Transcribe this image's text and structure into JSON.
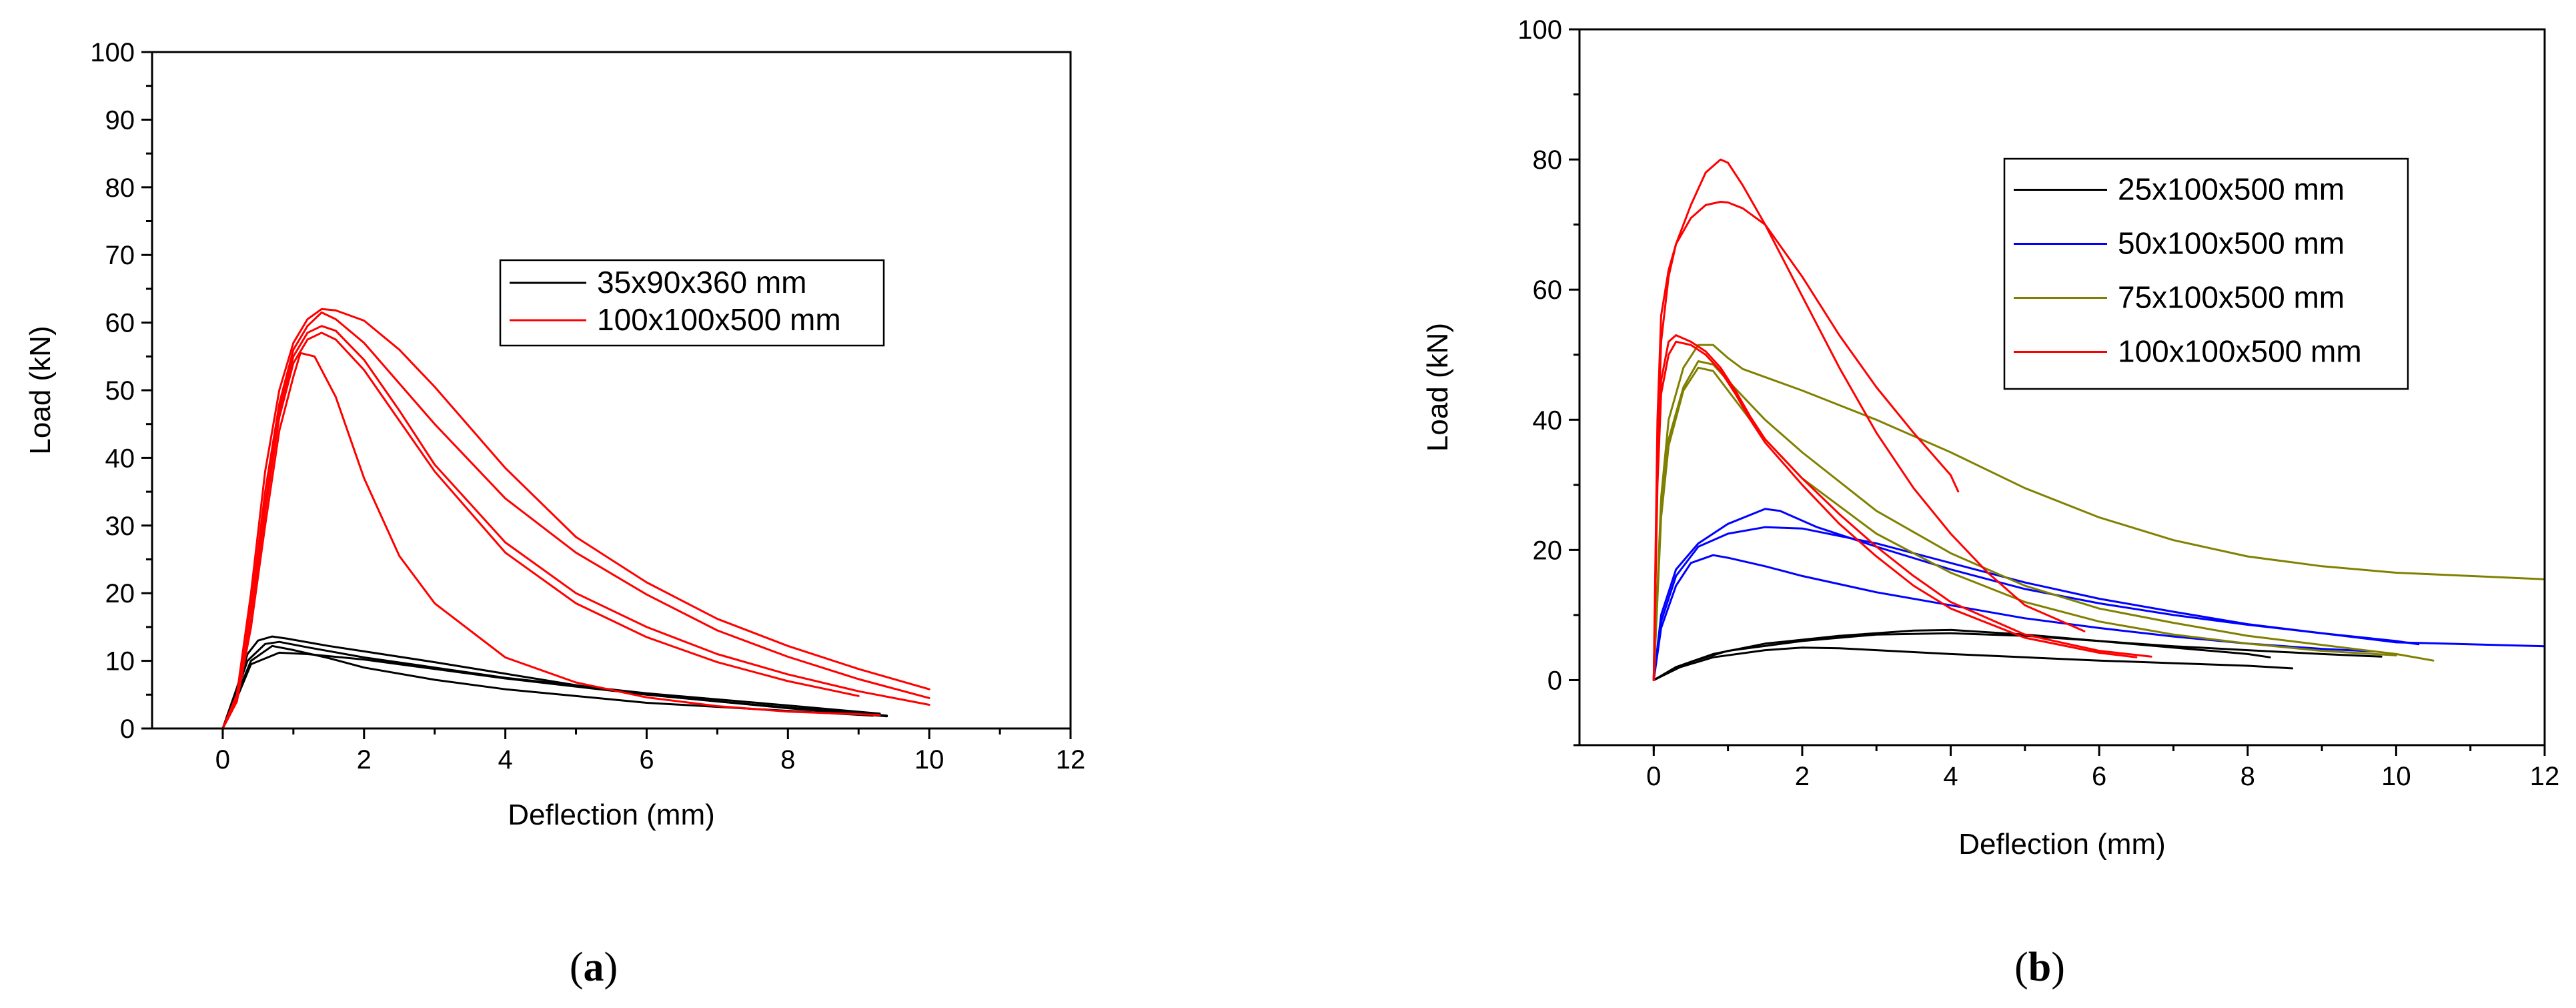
{
  "chart_data": [
    {
      "type": "line",
      "caption": "a",
      "xlabel": "Deflection (mm)",
      "ylabel": "Load (kN)",
      "xlim": [
        -1,
        12
      ],
      "ylim": [
        0,
        100
      ],
      "xticks": [
        0,
        2,
        4,
        6,
        8,
        10,
        12
      ],
      "yticks": [
        0,
        10,
        20,
        30,
        40,
        50,
        60,
        70,
        80,
        90,
        100
      ],
      "legend_position": "upper-right",
      "series": [
        {
          "name": "35x90x360 mm",
          "color": "#000000",
          "show_in_legend": true,
          "x": [
            0,
            0.2,
            0.35,
            0.5,
            0.7,
            0.9,
            1.5,
            2,
            3,
            4,
            5,
            6,
            7,
            8,
            9,
            9.4
          ],
          "y": [
            0,
            6,
            11,
            13,
            13.6,
            13.3,
            12.2,
            11.4,
            9.8,
            8.1,
            6.4,
            5,
            4,
            3.1,
            2.3,
            1.9
          ]
        },
        {
          "name": "",
          "color": "#000000",
          "show_in_legend": false,
          "x": [
            0,
            0.2,
            0.35,
            0.6,
            0.8,
            1.2,
            2,
            3,
            4,
            6,
            8,
            9.3
          ],
          "y": [
            0,
            5.5,
            10,
            12.5,
            12.8,
            12,
            10.5,
            9,
            7.5,
            5.2,
            3.4,
            2.2
          ]
        },
        {
          "name": "",
          "color": "#000000",
          "show_in_legend": false,
          "x": [
            0,
            0.2,
            0.4,
            0.7,
            1,
            1.5,
            2,
            3,
            4,
            6,
            8,
            9.2
          ],
          "y": [
            0,
            5,
            10,
            12.2,
            11.6,
            10.4,
            9,
            7.2,
            5.8,
            3.8,
            2.6,
            1.9
          ]
        },
        {
          "name": "",
          "color": "#000000",
          "show_in_legend": false,
          "x": [
            0,
            0.2,
            0.4,
            0.8,
            1.2,
            2,
            3,
            4,
            6,
            8,
            9.4
          ],
          "y": [
            0,
            4.5,
            9.5,
            11.2,
            11,
            10.2,
            8.8,
            7.4,
            5,
            3,
            1.8
          ]
        },
        {
          "name": "100x100x500 mm",
          "color": "#ff0000",
          "show_in_legend": true,
          "x": [
            0,
            0.2,
            0.4,
            0.6,
            0.8,
            1,
            1.2,
            1.4,
            1.6,
            2,
            2.5,
            3,
            4,
            5,
            6,
            7,
            8,
            9,
            10
          ],
          "y": [
            0,
            5,
            20,
            38,
            50,
            57,
            60.5,
            62,
            61.8,
            60.3,
            56,
            50.5,
            38.5,
            28.3,
            21.6,
            16.2,
            12.2,
            8.8,
            5.8
          ]
        },
        {
          "name": "",
          "color": "#ff0000",
          "show_in_legend": false,
          "x": [
            0,
            0.2,
            0.4,
            0.6,
            0.8,
            1,
            1.2,
            1.4,
            1.6,
            2,
            2.5,
            3,
            4,
            5,
            6,
            7,
            8,
            9,
            10
          ],
          "y": [
            0,
            4.5,
            18,
            35,
            48,
            56,
            59.5,
            61.5,
            60.5,
            57,
            51,
            45,
            34,
            26,
            19.8,
            14.5,
            10.6,
            7.3,
            4.5
          ]
        },
        {
          "name": "",
          "color": "#ff0000",
          "show_in_legend": false,
          "x": [
            0,
            0.2,
            0.4,
            0.6,
            0.8,
            1,
            1.2,
            1.4,
            1.6,
            2,
            2.5,
            3,
            4,
            5,
            6,
            7,
            8,
            9,
            10
          ],
          "y": [
            0,
            4,
            16,
            33,
            47,
            55,
            58.5,
            59.5,
            58.8,
            54.5,
            47,
            39,
            27.5,
            20,
            15,
            11,
            8,
            5.5,
            3.5
          ]
        },
        {
          "name": "",
          "color": "#ff0000",
          "show_in_legend": false,
          "x": [
            0,
            0.2,
            0.4,
            0.6,
            0.8,
            1,
            1.2,
            1.4,
            1.6,
            2,
            2.5,
            3,
            4,
            5,
            6,
            7,
            8,
            9
          ],
          "y": [
            0,
            4,
            15,
            32,
            46,
            54,
            57.5,
            58.5,
            57.5,
            53,
            45.5,
            38,
            26,
            18.5,
            13.5,
            9.8,
            7,
            4.8
          ]
        },
        {
          "name": "",
          "color": "#ff0000",
          "show_in_legend": false,
          "x": [
            0,
            0.2,
            0.4,
            0.6,
            0.8,
            1,
            1.1,
            1.3,
            1.6,
            2,
            2.5,
            3,
            4,
            5,
            6,
            7,
            8,
            9.3
          ],
          "y": [
            0,
            4,
            15,
            30,
            44,
            52,
            55.5,
            55,
            49,
            37,
            25.5,
            18.5,
            10.5,
            6.8,
            4.6,
            3.3,
            2.5,
            2
          ]
        }
      ]
    },
    {
      "type": "line",
      "caption": "b",
      "xlabel": "Deflection (mm)",
      "ylabel": "Load (kN)",
      "xlim": [
        -1,
        12
      ],
      "ylim": [
        -10,
        100
      ],
      "xticks": [
        0,
        2,
        4,
        6,
        8,
        10,
        12
      ],
      "yticks": [
        0,
        20,
        40,
        60,
        80,
        100
      ],
      "legend_position": "upper-right",
      "series": [
        {
          "name": "25x100x500 mm",
          "color": "#000000",
          "show_in_legend": true,
          "x": [
            0,
            0.3,
            0.8,
            1.5,
            2.5,
            3.5,
            4,
            5,
            6,
            7,
            8,
            8.3
          ],
          "y": [
            0,
            2,
            4,
            5.6,
            6.8,
            7.6,
            7.7,
            7,
            6,
            5,
            4,
            3.5
          ]
        },
        {
          "name": "",
          "color": "#000000",
          "show_in_legend": false,
          "x": [
            0,
            0.3,
            0.8,
            1.5,
            2,
            2.5,
            3,
            4,
            5,
            6,
            7,
            8,
            8.6
          ],
          "y": [
            0,
            1.8,
            3.5,
            4.6,
            5,
            4.9,
            4.6,
            4,
            3.5,
            3,
            2.6,
            2.2,
            1.8
          ]
        },
        {
          "name": "",
          "color": "#000000",
          "show_in_legend": false,
          "x": [
            0,
            0.5,
            1,
            2,
            3,
            4,
            5,
            6,
            7,
            8,
            9,
            9.8
          ],
          "y": [
            0,
            2.8,
            4.5,
            6,
            7,
            7.2,
            6.8,
            6,
            5.2,
            4.6,
            4,
            3.6
          ]
        },
        {
          "name": "50x100x500 mm",
          "color": "#0000ff",
          "show_in_legend": true,
          "x": [
            0,
            0.1,
            0.3,
            0.6,
            1,
            1.5,
            1.7,
            2.2,
            3,
            4,
            5,
            6,
            7,
            8,
            9,
            10,
            10.3
          ],
          "y": [
            0,
            10,
            17,
            21,
            24,
            26.3,
            26,
            23.5,
            20.5,
            17,
            14,
            11.8,
            10,
            8.5,
            7.2,
            6,
            5.5
          ]
        },
        {
          "name": "",
          "color": "#0000ff",
          "show_in_legend": false,
          "x": [
            0,
            0.1,
            0.3,
            0.6,
            1,
            1.5,
            2,
            3,
            4,
            5,
            6,
            7,
            8,
            9,
            10,
            12
          ],
          "y": [
            0,
            9,
            16,
            20.5,
            22.5,
            23.5,
            23.3,
            21,
            18,
            15,
            12.5,
            10.5,
            8.6,
            7.2,
            5.8,
            5.2
          ]
        },
        {
          "name": "",
          "color": "#0000ff",
          "show_in_legend": false,
          "x": [
            0,
            0.1,
            0.3,
            0.5,
            0.8,
            1,
            1.5,
            2,
            3,
            4,
            5,
            6,
            7,
            8,
            9,
            9.7
          ],
          "y": [
            0,
            8,
            14.5,
            18,
            19.2,
            18.8,
            17.5,
            16,
            13.5,
            11.5,
            9.5,
            8,
            6.7,
            5.6,
            4.8,
            4.4
          ]
        },
        {
          "name": "75x100x500 mm",
          "color": "#808000",
          "show_in_legend": true,
          "x": [
            0,
            0.1,
            0.2,
            0.4,
            0.6,
            0.8,
            1,
            1.2,
            2,
            3,
            4,
            5,
            6,
            7,
            8,
            9,
            10,
            11,
            12
          ],
          "y": [
            0,
            28,
            40,
            48,
            51.5,
            51.5,
            49.5,
            47.8,
            44.5,
            40,
            35,
            29.5,
            25,
            21.5,
            19,
            17.5,
            16.5,
            16,
            15.5
          ]
        },
        {
          "name": "",
          "color": "#808000",
          "show_in_legend": false,
          "x": [
            0,
            0.1,
            0.2,
            0.4,
            0.6,
            0.8,
            1,
            1.5,
            2,
            3,
            4,
            5,
            6,
            7,
            8,
            9,
            10,
            10.5
          ],
          "y": [
            0,
            26,
            37,
            45,
            49,
            48.5,
            46,
            40,
            35,
            26,
            19.5,
            14.5,
            11,
            8.8,
            6.8,
            5.4,
            4,
            3
          ]
        },
        {
          "name": "",
          "color": "#808000",
          "show_in_legend": false,
          "x": [
            0,
            0.1,
            0.2,
            0.4,
            0.6,
            0.8,
            1,
            1.5,
            2,
            3,
            4,
            5,
            6,
            7,
            8,
            9,
            10
          ],
          "y": [
            0,
            25,
            36,
            44.5,
            48,
            47.5,
            44.5,
            37,
            31,
            22.5,
            16.5,
            12,
            9,
            7,
            5.6,
            4.5,
            3.8
          ]
        },
        {
          "name": "100x100x500 mm",
          "color": "#ff0000",
          "show_in_legend": true,
          "x": [
            0,
            0.05,
            0.1,
            0.2,
            0.3,
            0.5,
            0.7,
            0.9,
            1,
            1.2,
            1.5,
            2,
            2.5,
            3,
            3.5,
            4,
            4.1
          ],
          "y": [
            0,
            40,
            56,
            63,
            67,
            71,
            73,
            73.5,
            73.4,
            72.5,
            70,
            62,
            53,
            45,
            38,
            31.5,
            29
          ]
        },
        {
          "name": "",
          "color": "#ff0000",
          "show_in_legend": false,
          "x": [
            0,
            0.05,
            0.1,
            0.2,
            0.3,
            0.5,
            0.7,
            0.9,
            1,
            1.2,
            1.5,
            2,
            2.5,
            3,
            3.5,
            4,
            4.5,
            5,
            5.8
          ],
          "y": [
            0,
            35,
            52,
            62,
            67,
            73,
            78,
            80,
            79.5,
            76,
            70,
            59,
            48,
            38,
            29.5,
            22.5,
            16.5,
            11.5,
            7.5
          ]
        },
        {
          "name": "",
          "color": "#ff0000",
          "show_in_legend": false,
          "x": [
            0,
            0.05,
            0.1,
            0.2,
            0.3,
            0.5,
            0.7,
            0.9,
            1.1,
            1.3,
            1.5,
            2,
            2.5,
            3,
            3.5,
            4,
            5,
            6,
            6.7
          ],
          "y": [
            0,
            32,
            46,
            52,
            53,
            52,
            50.5,
            48,
            44.5,
            40.5,
            37,
            31,
            25.5,
            20.5,
            16,
            12,
            7,
            4.5,
            3.6
          ]
        },
        {
          "name": "",
          "color": "#ff0000",
          "show_in_legend": false,
          "x": [
            0,
            0.05,
            0.1,
            0.2,
            0.3,
            0.5,
            0.7,
            0.9,
            1.1,
            1.3,
            1.5,
            2,
            2.5,
            3,
            3.5,
            4,
            5,
            6,
            6.5
          ],
          "y": [
            0,
            30,
            44,
            50,
            52,
            51.5,
            50,
            47.5,
            44,
            40,
            36.5,
            30,
            24,
            19,
            14.5,
            11,
            6.5,
            4.2,
            3.5
          ]
        }
      ]
    }
  ]
}
